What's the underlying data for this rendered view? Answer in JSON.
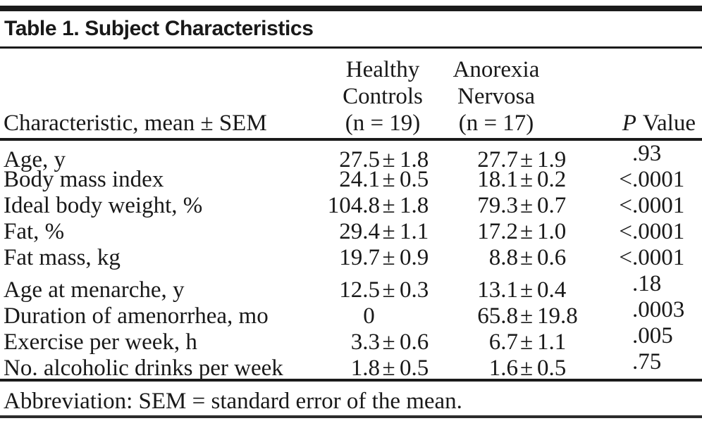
{
  "title": "Table 1. Subject Characteristics",
  "table": {
    "pm_sign": "±",
    "header": {
      "characteristic": "Characteristic, mean ± SEM",
      "healthy_controls_lines": [
        "Healthy",
        "Controls",
        "(n = 19)"
      ],
      "anorexia_nervosa_lines": [
        "Anorexia",
        "Nervosa",
        "(n = 17)"
      ],
      "p_value": {
        "italic": "P",
        "rest": "Value"
      }
    },
    "rows": [
      {
        "label": "Age, y",
        "healthy_controls": {
          "mean": "27.5",
          "sem": "1.8"
        },
        "anorexia_nervosa": {
          "mean": "27.7",
          "sem": "1.9"
        },
        "p": {
          "prefix": "",
          "value": ".93"
        }
      },
      {
        "label": "Body mass index",
        "healthy_controls": {
          "mean": "24.1",
          "sem": "0.5"
        },
        "anorexia_nervosa": {
          "mean": "18.1",
          "sem": "0.2"
        },
        "p": {
          "prefix": "<",
          "value": ".0001"
        }
      },
      {
        "label": "Ideal body weight, %",
        "healthy_controls": {
          "mean": "104.8",
          "sem": "1.8"
        },
        "anorexia_nervosa": {
          "mean": "79.3",
          "sem": "0.7"
        },
        "p": {
          "prefix": "<",
          "value": ".0001"
        }
      },
      {
        "label": "Fat, %",
        "healthy_controls": {
          "mean": "29.4",
          "sem": "1.1"
        },
        "anorexia_nervosa": {
          "mean": "17.2",
          "sem": "1.0"
        },
        "p": {
          "prefix": "<",
          "value": ".0001"
        }
      },
      {
        "label": "Fat mass, kg",
        "healthy_controls": {
          "mean": "19.7",
          "sem": "0.9"
        },
        "anorexia_nervosa": {
          "mean": "8.8",
          "sem": "0.6"
        },
        "p": {
          "prefix": "<",
          "value": ".0001"
        }
      },
      {
        "label": "Age at menarche, y",
        "healthy_controls": {
          "mean": "12.5",
          "sem": "0.3"
        },
        "anorexia_nervosa": {
          "mean": "13.1",
          "sem": "0.4"
        },
        "p": {
          "prefix": "",
          "value": ".18"
        }
      },
      {
        "label": "Duration of amenorrhea, mo",
        "healthy_controls": {
          "mean": "0",
          "sem": null
        },
        "anorexia_nervosa": {
          "mean": "65.8",
          "sem": "19.8"
        },
        "p": {
          "prefix": "",
          "value": ".0003"
        }
      },
      {
        "label": "Exercise per week, h",
        "healthy_controls": {
          "mean": "3.3",
          "sem": "0.6"
        },
        "anorexia_nervosa": {
          "mean": "6.7",
          "sem": "1.1"
        },
        "p": {
          "prefix": "",
          "value": ".005"
        }
      },
      {
        "label": "No. alcoholic drinks per week",
        "healthy_controls": {
          "mean": "1.8",
          "sem": "0.5"
        },
        "anorexia_nervosa": {
          "mean": "1.6",
          "sem": "0.5"
        },
        "p": {
          "prefix": "",
          "value": ".75"
        }
      }
    ]
  },
  "footnote": "Abbreviation: SEM = standard error of the mean.",
  "colors": {
    "text": "#191919",
    "rule": "#1b1b1b",
    "background": "#ffffff"
  }
}
